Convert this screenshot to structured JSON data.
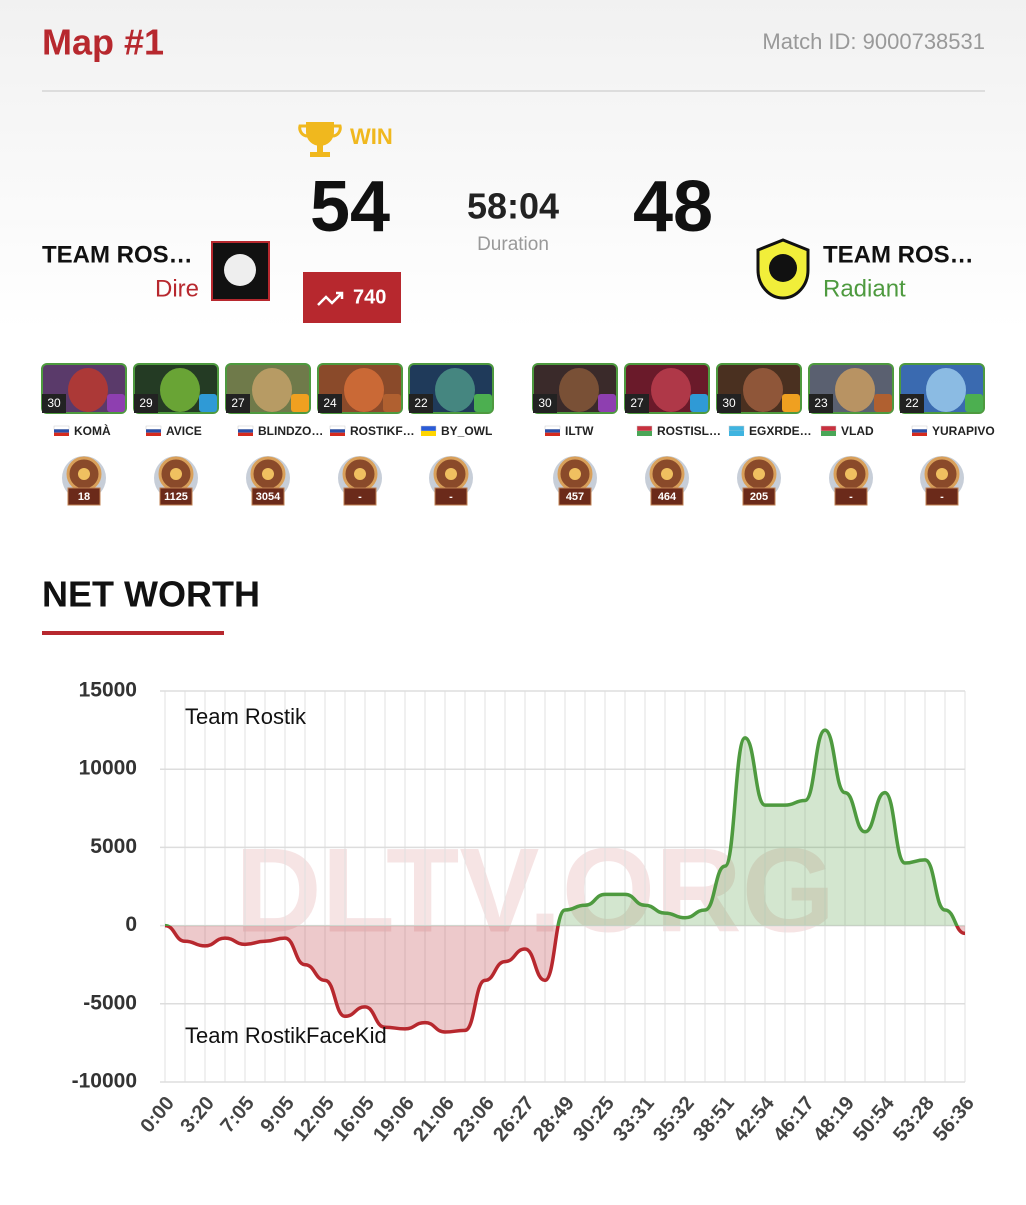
{
  "header": {
    "title": "Map #1",
    "match_id": "Match ID: 9000738531"
  },
  "score": {
    "result": "WIN",
    "left_score": "54",
    "duration": "58:04",
    "duration_label": "Duration",
    "right_score": "48",
    "rating_change": "740"
  },
  "teams": [
    {
      "name": "TEAM ROS…",
      "side": "Dire"
    },
    {
      "name": "TEAM ROS…",
      "side": "Radiant"
    }
  ],
  "players": [
    [
      {
        "level": "30",
        "name": "KOMÀ",
        "rank": "18"
      },
      {
        "level": "29",
        "name": "AVICE",
        "rank": "1125"
      },
      {
        "level": "27",
        "name": "BLINDZO…",
        "rank": "3054"
      },
      {
        "level": "24",
        "name": "ROSTIKF…",
        "rank": "-"
      },
      {
        "level": "22",
        "name": "BY_OWL",
        "rank": "-"
      }
    ],
    [
      {
        "level": "30",
        "name": "ILTW",
        "rank": "457"
      },
      {
        "level": "27",
        "name": "ROSTISL…",
        "rank": "464"
      },
      {
        "level": "30",
        "name": "EGXRDE…",
        "rank": "205"
      },
      {
        "level": "23",
        "name": "VLAD",
        "rank": "-"
      },
      {
        "level": "22",
        "name": "YURAPIVO",
        "rank": "-"
      }
    ]
  ],
  "chart_data": {
    "type": "area",
    "title": "NET WORTH",
    "watermark": "DLTV.ORG",
    "categories": [
      "0:00",
      null,
      "3:20",
      null,
      "7:05",
      null,
      "9:05",
      null,
      "12:05",
      null,
      "16:05",
      null,
      "19:06",
      null,
      "21:06",
      null,
      "23:06",
      null,
      "26:27",
      null,
      "28:49",
      null,
      "30:25",
      null,
      "33:31",
      null,
      "35:32",
      null,
      "38:51",
      null,
      "42:54",
      null,
      "46:17",
      null,
      "48:19",
      null,
      "50:54",
      null,
      "53:28",
      null,
      "56:36"
    ],
    "series": [
      {
        "name": "Team Rostik",
        "color": "#4e9a3f"
      },
      {
        "name": "Team RostikFaceKid",
        "color": "#b7282e"
      }
    ],
    "values": [
      0,
      -1000,
      -1300,
      -800,
      -1200,
      -1000,
      -800,
      -2500,
      -3500,
      -5800,
      -5200,
      -6500,
      -6600,
      -6200,
      -6800,
      -6700,
      -3500,
      -2300,
      -1500,
      -3500,
      1000,
      1300,
      2000,
      2000,
      1300,
      800,
      500,
      1000,
      3800,
      12000,
      7700,
      7700,
      8000,
      12500,
      8500,
      6000,
      8500,
      4000,
      4200,
      1000,
      -500
    ],
    "ylim": [
      -10000,
      15000
    ],
    "yticks": [
      15000,
      10000,
      5000,
      0,
      -5000,
      -10000
    ],
    "grid": true
  }
}
